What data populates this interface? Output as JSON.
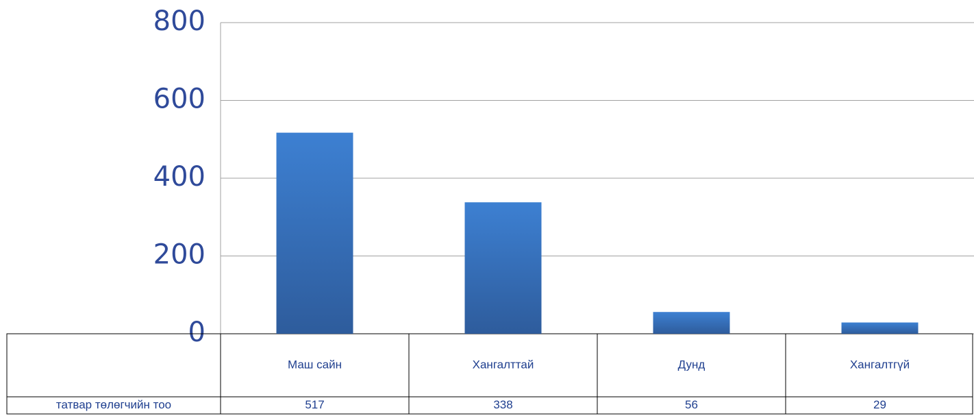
{
  "chart_data": {
    "type": "bar",
    "categories": [
      "Маш сайн",
      "Хангалттай",
      "Дунд",
      "Хангалтгүй"
    ],
    "series": [
      {
        "name": "татвар төлөгчийн тоо",
        "color": "#3a74c0",
        "values": [
          517,
          338,
          56,
          29
        ]
      }
    ],
    "ylim": [
      0,
      800
    ],
    "yticks": [
      0,
      200,
      400,
      600,
      800
    ],
    "grid": true
  }
}
